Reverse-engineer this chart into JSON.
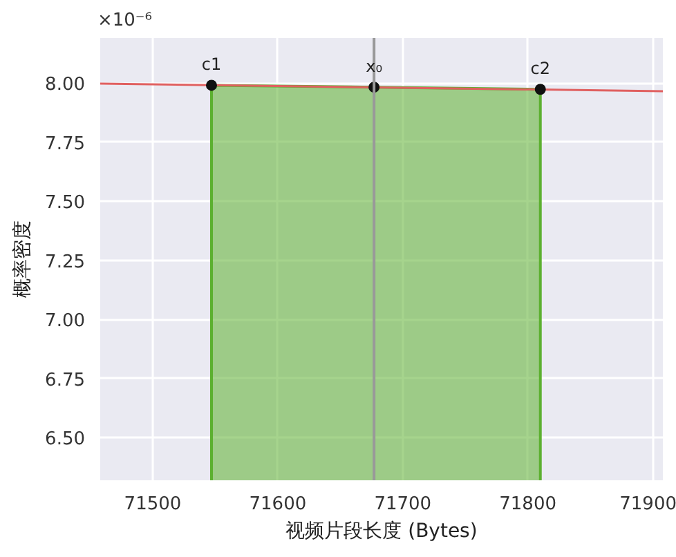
{
  "chart_data": {
    "type": "line",
    "xlabel": "视频片段长度 (Bytes)",
    "ylabel": "概率密度",
    "xlim": [
      71458,
      71908
    ],
    "ylim": [
      6.32,
      8.19
    ],
    "xticks": [
      71500,
      71600,
      71700,
      71800,
      71900
    ],
    "yticks": [
      {
        "value": 6.5,
        "label": "6.50"
      },
      {
        "value": 6.75,
        "label": "6.75"
      },
      {
        "value": 7.0,
        "label": "7.00"
      },
      {
        "value": 7.25,
        "label": "7.25"
      },
      {
        "value": 7.5,
        "label": "7.50"
      },
      {
        "value": 7.75,
        "label": "7.75"
      },
      {
        "value": 8.0,
        "label": "8.00"
      }
    ],
    "grid": true,
    "series": [
      {
        "type": "area",
        "color": "#5cb030",
        "x": [
          71547,
          71677,
          71810
        ],
        "values": [
          7.99,
          7.982,
          7.973
        ]
      },
      {
        "color": "#e06060",
        "x": [
          71458,
          71908
        ],
        "values": [
          7.997,
          7.965
        ],
        "marker": "none"
      },
      {
        "type": "scatter",
        "color": "#111111",
        "x": [
          71547,
          71677,
          71810
        ],
        "values": [
          7.99,
          7.982,
          7.973
        ],
        "marker": "circle"
      }
    ],
    "ref_lines": [
      {
        "axis": "x",
        "value": 71677,
        "color": "#999999"
      }
    ],
    "annotations": [
      "×10⁻⁶",
      {
        "text": "c1",
        "x": 71547,
        "y": 7.99
      },
      {
        "text": "x₀",
        "x": 71677,
        "y": 7.982
      },
      {
        "text": "c2",
        "x": 71810,
        "y": 7.973
      }
    ]
  }
}
